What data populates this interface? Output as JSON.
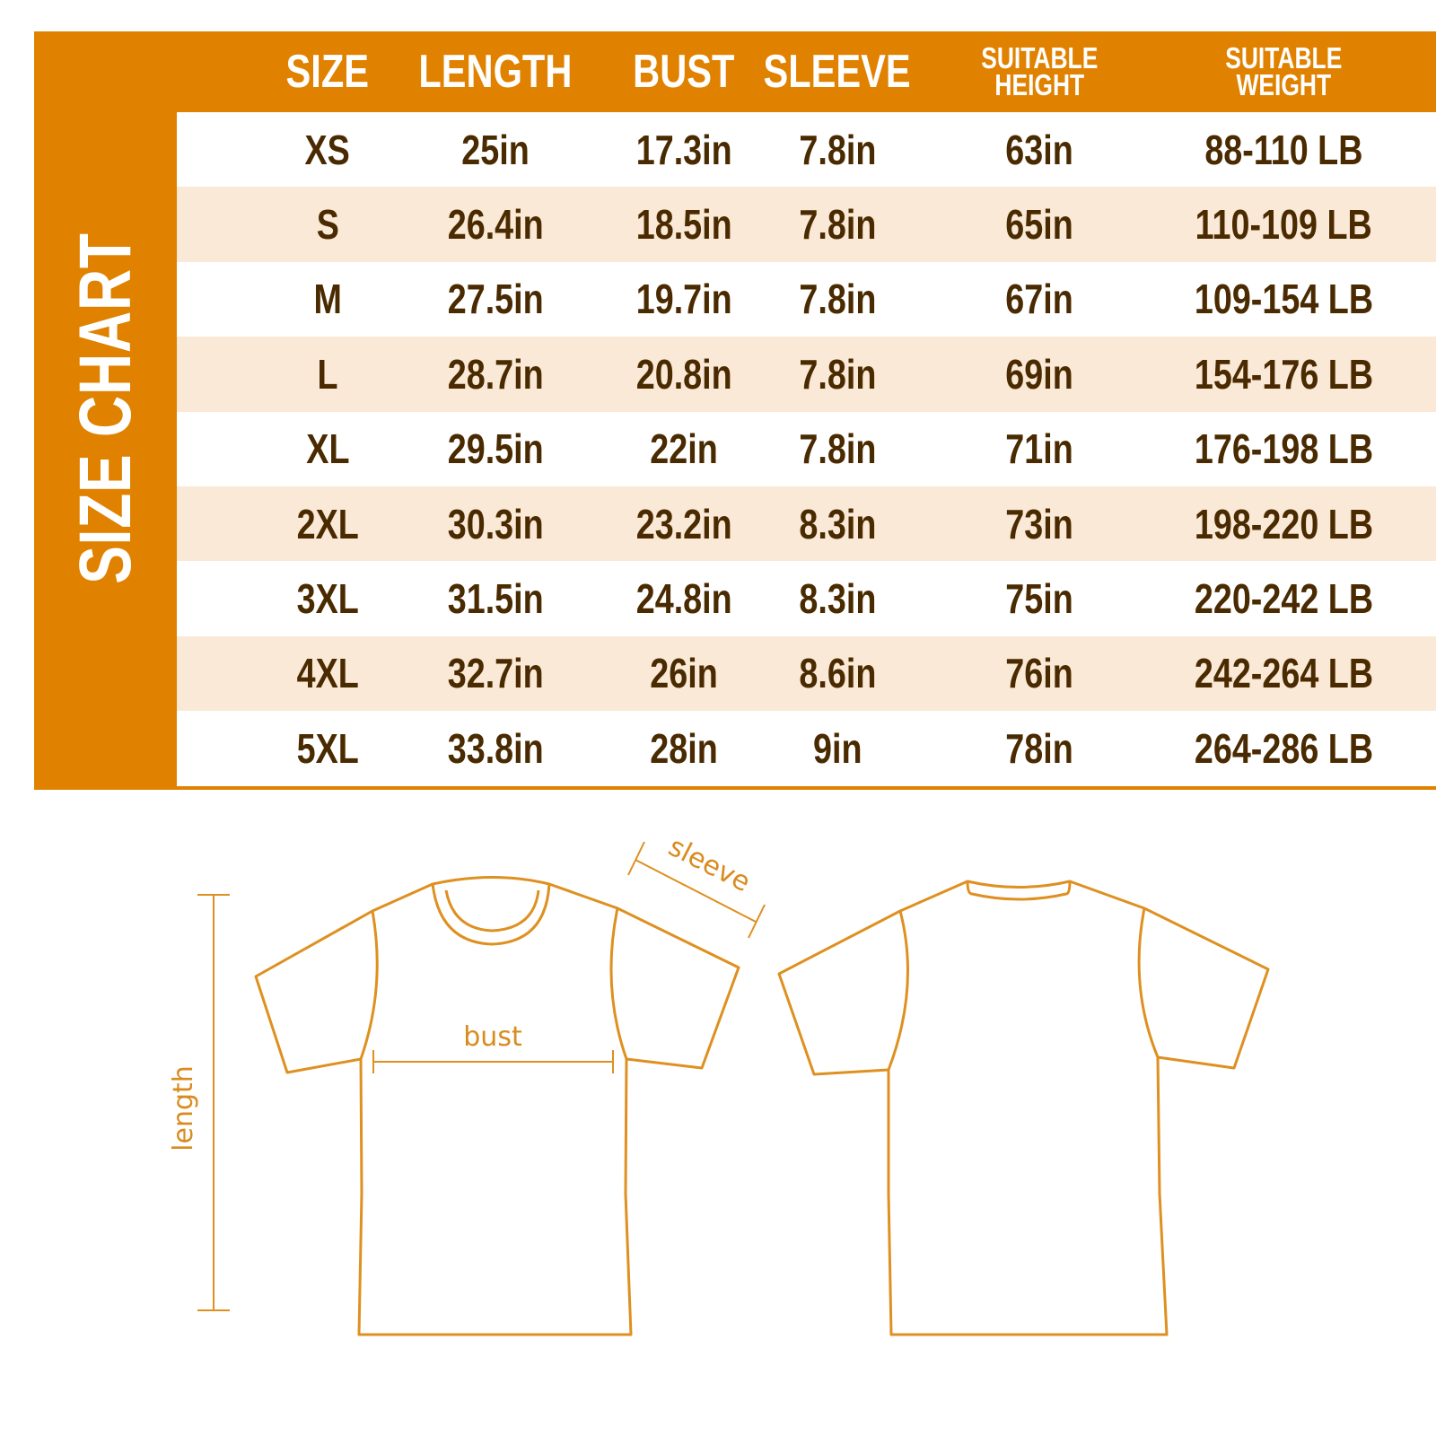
{
  "title": "SIZE CHART",
  "colors": {
    "accent": "#E08200",
    "stripe": "#FAE9D6",
    "text": "#4A2A00",
    "line": "#DE9020"
  },
  "columns": [
    {
      "line1": "SIZE",
      "line2": ""
    },
    {
      "line1": "LENGTH",
      "line2": ""
    },
    {
      "line1": "BUST",
      "line2": ""
    },
    {
      "line1": "SLEEVE",
      "line2": ""
    },
    {
      "line1": "SUITABLE",
      "line2": "HEIGHT"
    },
    {
      "line1": "SUITABLE",
      "line2": "WEIGHT"
    }
  ],
  "rows": [
    [
      "XS",
      "25in",
      "17.3in",
      "7.8in",
      "63in",
      "88-110 LB"
    ],
    [
      "S",
      "26.4in",
      "18.5in",
      "7.8in",
      "65in",
      "110-109 LB"
    ],
    [
      "M",
      "27.5in",
      "19.7in",
      "7.8in",
      "67in",
      "109-154 LB"
    ],
    [
      "L",
      "28.7in",
      "20.8in",
      "7.8in",
      "69in",
      "154-176 LB"
    ],
    [
      "XL",
      "29.5in",
      "22in",
      "7.8in",
      "71in",
      "176-198 LB"
    ],
    [
      "2XL",
      "30.3in",
      "23.2in",
      "8.3in",
      "73in",
      "198-220 LB"
    ],
    [
      "3XL",
      "31.5in",
      "24.8in",
      "8.3in",
      "75in",
      "220-242 LB"
    ],
    [
      "4XL",
      "32.7in",
      "26in",
      "8.6in",
      "76in",
      "242-264 LB"
    ],
    [
      "5XL",
      "33.8in",
      "28in",
      "9in",
      "78in",
      "264-286 LB"
    ]
  ],
  "diagram": {
    "bust": "bust",
    "sleeve": "sleeve",
    "length": "length"
  }
}
